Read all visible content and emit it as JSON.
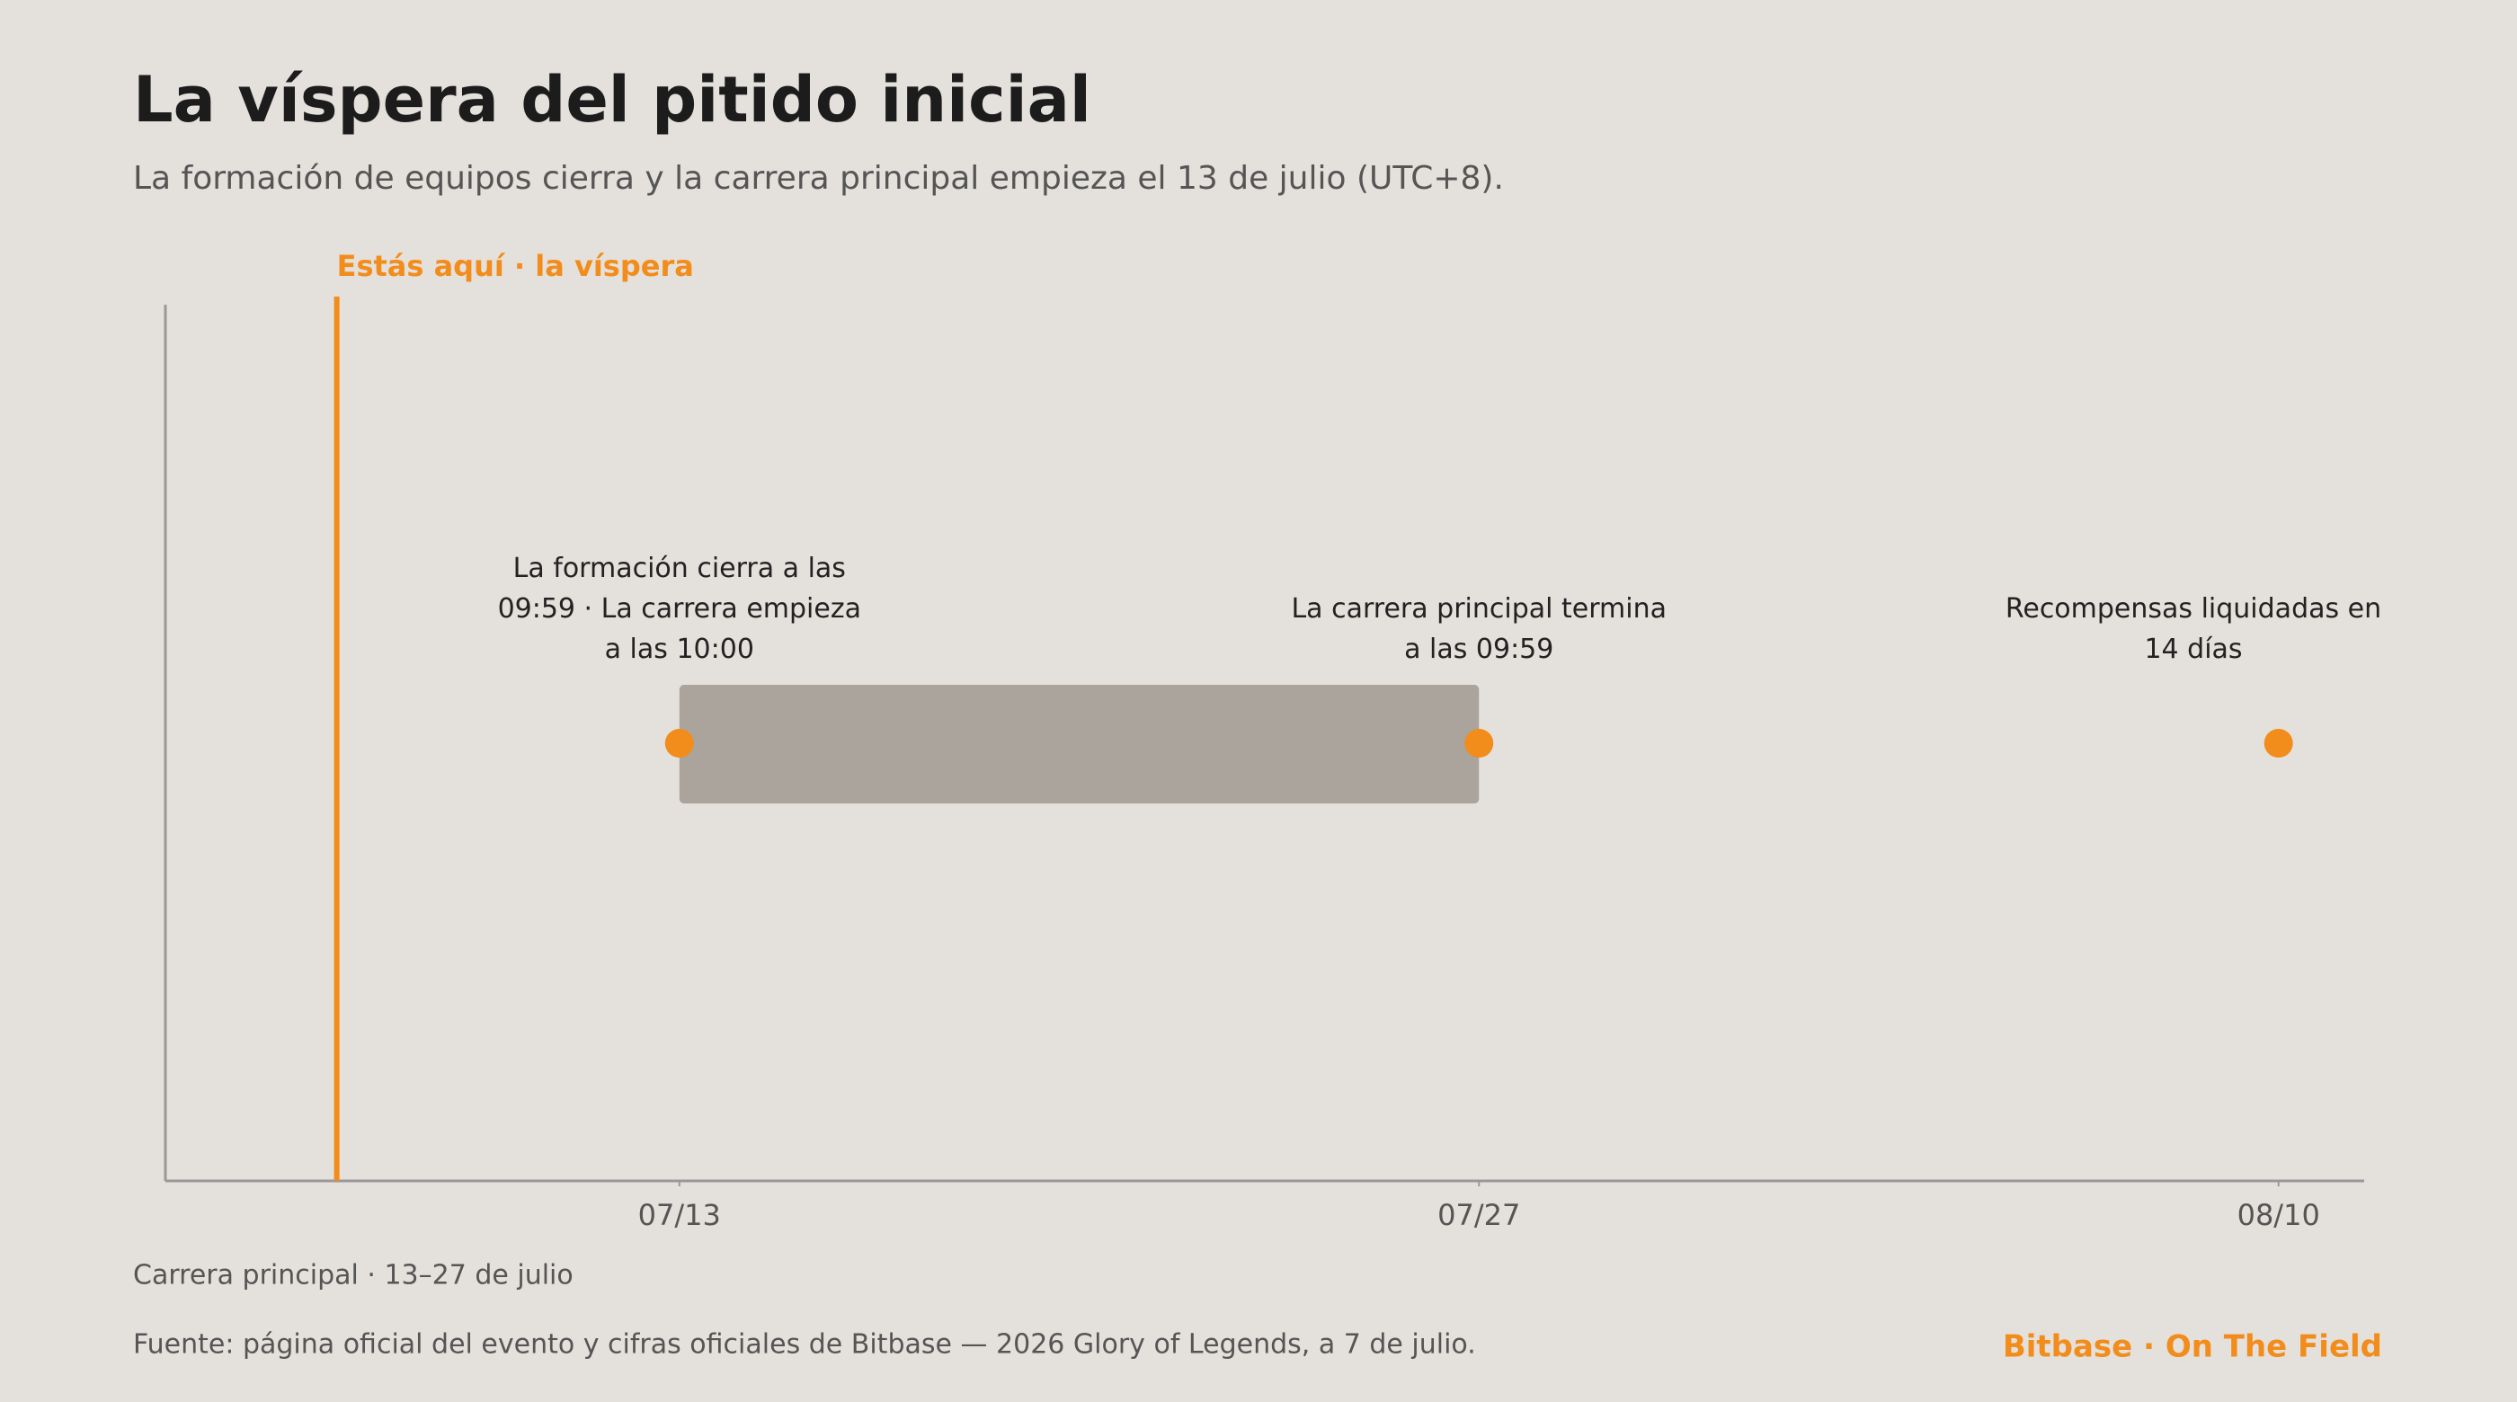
{
  "chart_data": {
    "type": "timeline",
    "title": "La víspera del pitido inicial",
    "subtitle": "La formación de equipos cierra y la carrera principal empieza el 13 de julio (UTC+8).",
    "today": {
      "label": "Estás aquí · la víspera",
      "x": 7,
      "color": "#f28c1b"
    },
    "range": {
      "start": 13,
      "end": 27,
      "label": "Carrera principal · 13–27 de julio",
      "color": "#aaa49d"
    },
    "events": [
      {
        "x": 13,
        "label": "La formación cierra a las 09:59 · La carrera empieza a las 10:00"
      },
      {
        "x": 27,
        "label": "La carrera principal termina a las 09:59"
      },
      {
        "x": 41,
        "label": "Recompensas liquidadas en 14 días"
      }
    ],
    "event_color": "#f28c1b",
    "xlim": [
      4,
      42.5
    ],
    "xticks": [
      {
        "value": 13,
        "label": "07/13"
      },
      {
        "value": 27,
        "label": "07/27"
      },
      {
        "value": 41,
        "label": "08/10"
      }
    ],
    "source": "Fuente: página oficial del evento y cifras oficiales de Bitbase — 2026 Glory of Legends, a 7 de julio.",
    "brand": "Bitbase · On The Field"
  }
}
